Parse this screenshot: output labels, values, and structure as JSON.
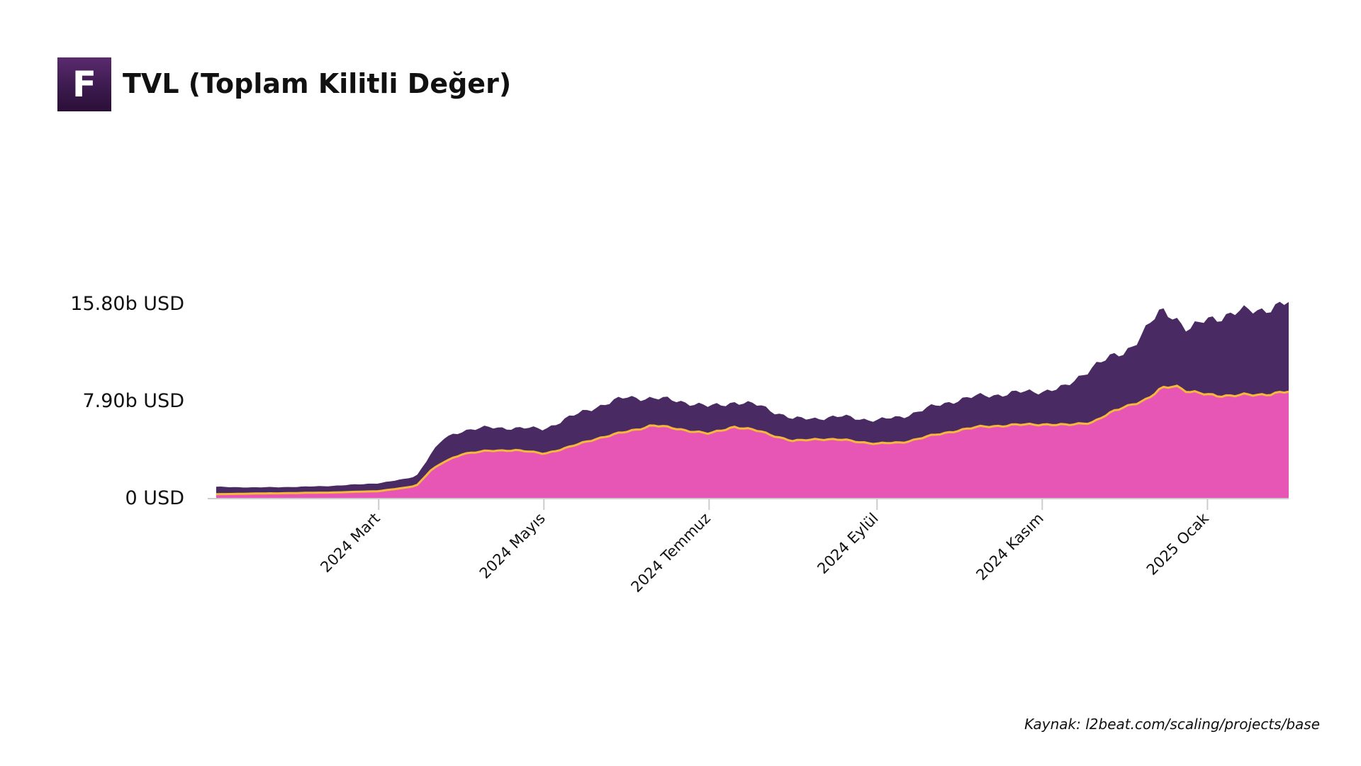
{
  "header": {
    "logo_letter": "F",
    "title": "TVL (Toplam Kilitli Değer)"
  },
  "source": "Kaynak: l2beat.com/scaling/projects/base",
  "colors": {
    "total_area": "#4a2a62",
    "lower_area": "#e756b5",
    "lower_line": "#f5b83a",
    "axis": "#cccccc"
  },
  "chart_data": {
    "type": "area",
    "ylim": [
      0,
      15.8
    ],
    "y_ticks": [
      {
        "value": 0,
        "label": "0 USD"
      },
      {
        "value": 7.9,
        "label": "7.90b USD"
      },
      {
        "value": 15.8,
        "label": "15.80b USD"
      }
    ],
    "x_range": [
      "2024-01-01",
      "2025-01-31"
    ],
    "x_ticks": [
      {
        "date": "2024-03-01",
        "label": "2024 Mart"
      },
      {
        "date": "2024-05-01",
        "label": "2024 Mayıs"
      },
      {
        "date": "2024-07-01",
        "label": "2024 Temmuz"
      },
      {
        "date": "2024-09-01",
        "label": "2024 Eylül"
      },
      {
        "date": "2024-11-01",
        "label": "2024 Kasım"
      },
      {
        "date": "2025-01-01",
        "label": "2025 Ocak"
      }
    ],
    "series": [
      {
        "name": "",
        "x": [
          "2024-01-01",
          "2024-01-15",
          "2024-02-01",
          "2024-02-15",
          "2024-03-01",
          "2024-03-10",
          "2024-03-15",
          "2024-03-20",
          "2024-03-25",
          "2024-04-01",
          "2024-04-10",
          "2024-04-20",
          "2024-05-01",
          "2024-05-10",
          "2024-05-20",
          "2024-06-01",
          "2024-06-10",
          "2024-06-20",
          "2024-07-01",
          "2024-07-10",
          "2024-07-20",
          "2024-08-01",
          "2024-08-10",
          "2024-08-20",
          "2024-09-01",
          "2024-09-10",
          "2024-09-20",
          "2024-10-01",
          "2024-10-10",
          "2024-10-20",
          "2024-11-01",
          "2024-11-10",
          "2024-11-20",
          "2024-12-01",
          "2024-12-05",
          "2024-12-10",
          "2024-12-15",
          "2024-12-20",
          "2024-12-25",
          "2025-01-01",
          "2025-01-10",
          "2025-01-20",
          "2025-01-31"
        ],
        "values": [
          0.3,
          0.35,
          0.4,
          0.45,
          0.55,
          0.8,
          1.0,
          2.2,
          2.9,
          3.6,
          3.8,
          3.9,
          3.6,
          4.1,
          4.8,
          5.4,
          5.9,
          5.6,
          5.2,
          5.8,
          5.4,
          4.6,
          4.8,
          4.7,
          4.4,
          4.5,
          5.0,
          5.5,
          5.8,
          5.9,
          6.0,
          5.9,
          6.2,
          7.4,
          7.7,
          8.0,
          8.9,
          9.2,
          8.6,
          8.4,
          8.3,
          8.4,
          8.6
        ]
      },
      {
        "name": "",
        "x": [
          "2024-01-01",
          "2024-01-15",
          "2024-02-01",
          "2024-02-15",
          "2024-03-01",
          "2024-03-10",
          "2024-03-15",
          "2024-03-20",
          "2024-03-25",
          "2024-04-01",
          "2024-04-10",
          "2024-04-20",
          "2024-05-01",
          "2024-05-10",
          "2024-05-20",
          "2024-06-01",
          "2024-06-10",
          "2024-06-20",
          "2024-07-01",
          "2024-07-10",
          "2024-07-20",
          "2024-08-01",
          "2024-08-10",
          "2024-08-20",
          "2024-09-01",
          "2024-09-10",
          "2024-09-20",
          "2024-10-01",
          "2024-10-10",
          "2024-10-20",
          "2024-11-01",
          "2024-11-10",
          "2024-11-20",
          "2024-12-01",
          "2024-12-05",
          "2024-12-10",
          "2024-12-15",
          "2024-12-20",
          "2024-12-25",
          "2025-01-01",
          "2025-01-10",
          "2025-01-20",
          "2025-01-31"
        ],
        "values": [
          0.9,
          0.85,
          0.9,
          1.0,
          1.2,
          1.5,
          1.8,
          3.5,
          4.8,
          5.5,
          5.7,
          5.7,
          5.6,
          6.5,
          7.4,
          8.2,
          8.1,
          7.9,
          7.4,
          7.8,
          7.5,
          6.4,
          6.5,
          6.6,
          6.3,
          6.6,
          7.3,
          8.0,
          8.3,
          8.5,
          8.7,
          9.0,
          10.8,
          11.8,
          12.6,
          13.9,
          15.2,
          14.8,
          13.6,
          14.5,
          15.0,
          15.3,
          15.8
        ]
      }
    ]
  }
}
